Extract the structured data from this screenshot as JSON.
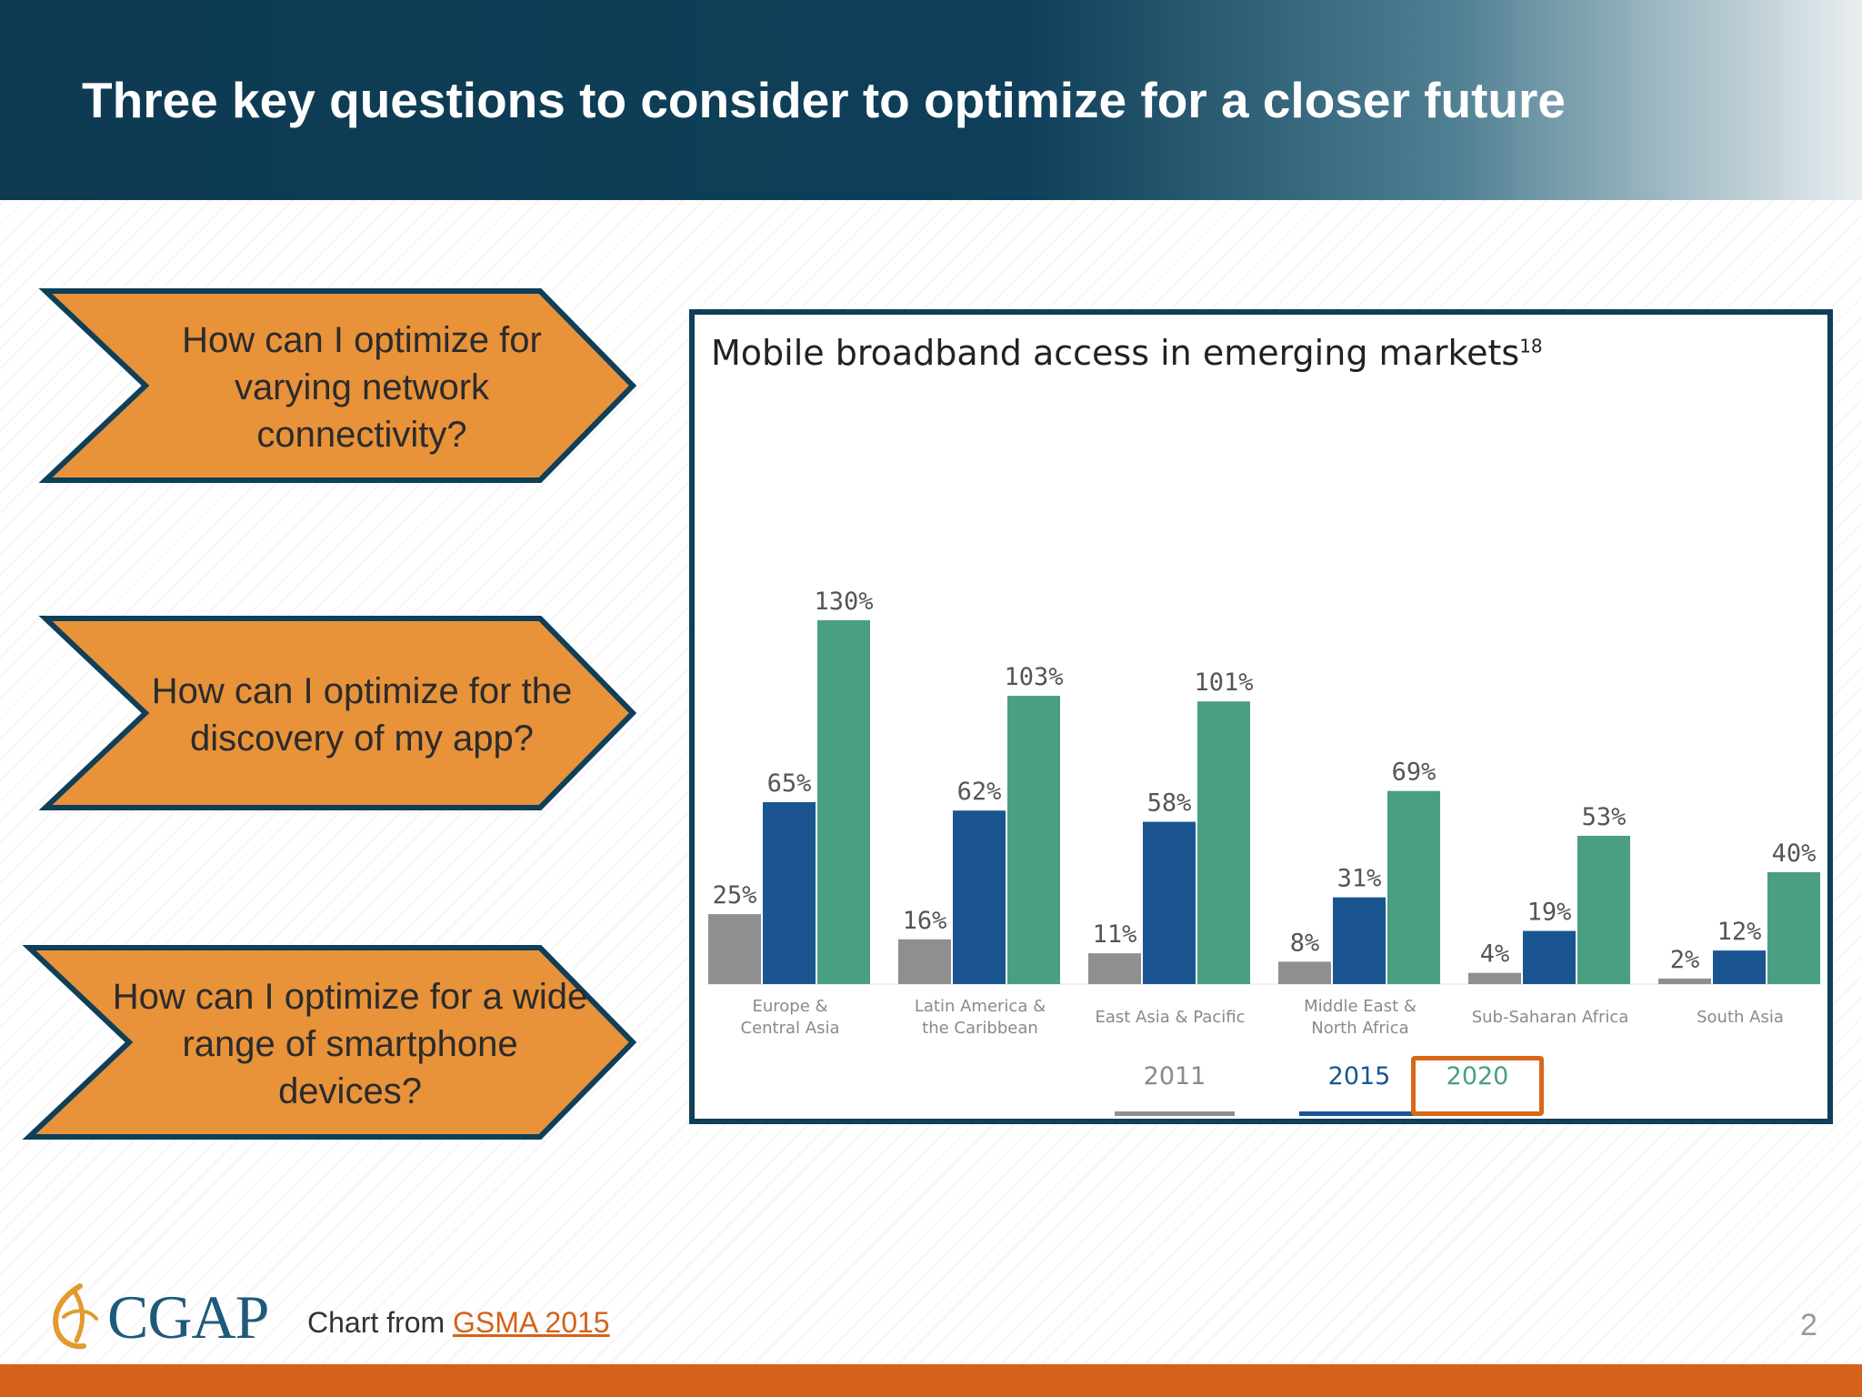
{
  "header": {
    "title": "Three key questions to consider to optimize for a closer future"
  },
  "arrows": [
    {
      "text": "How can I optimize for varying network connectivity?"
    },
    {
      "text": "How can I optimize for the discovery of my app?"
    },
    {
      "text": "How can I optimize for a wide range of smartphone devices?"
    }
  ],
  "colors": {
    "header_dark": "#0f3f59",
    "arrow_fill": "#e8923a",
    "arrow_border": "#0f3f59",
    "series_2011": "#8f8f8f",
    "series_2015": "#1a5591",
    "series_2020": "#4a9e82",
    "highlight": "#d86818",
    "footer_bar": "#d4621a"
  },
  "chart_data": {
    "type": "bar",
    "title": "Mobile broadband access in emerging markets",
    "title_superscript": "18",
    "categories": [
      "Europe & Central Asia",
      "Latin America & the Caribbean",
      "East Asia & Pacific",
      "Middle East & North Africa",
      "Sub-Saharan Africa",
      "South Asia"
    ],
    "series": [
      {
        "name": "2011",
        "color": "#8f8f8f",
        "values": [
          25,
          16,
          11,
          8,
          4,
          2
        ]
      },
      {
        "name": "2015",
        "color": "#1a5591",
        "values": [
          65,
          62,
          58,
          31,
          19,
          12
        ]
      },
      {
        "name": "2020",
        "color": "#4a9e82",
        "values": [
          130,
          103,
          101,
          69,
          53,
          40
        ]
      }
    ],
    "value_suffix": "%",
    "ylim": [
      0,
      130
    ],
    "legend": "bottom",
    "highlighted_series": "2020",
    "grid": false
  },
  "footer": {
    "logo_text": "CGAP",
    "source_prefix": "Chart from ",
    "source_link": "GSMA 2015",
    "page_number": "2"
  }
}
